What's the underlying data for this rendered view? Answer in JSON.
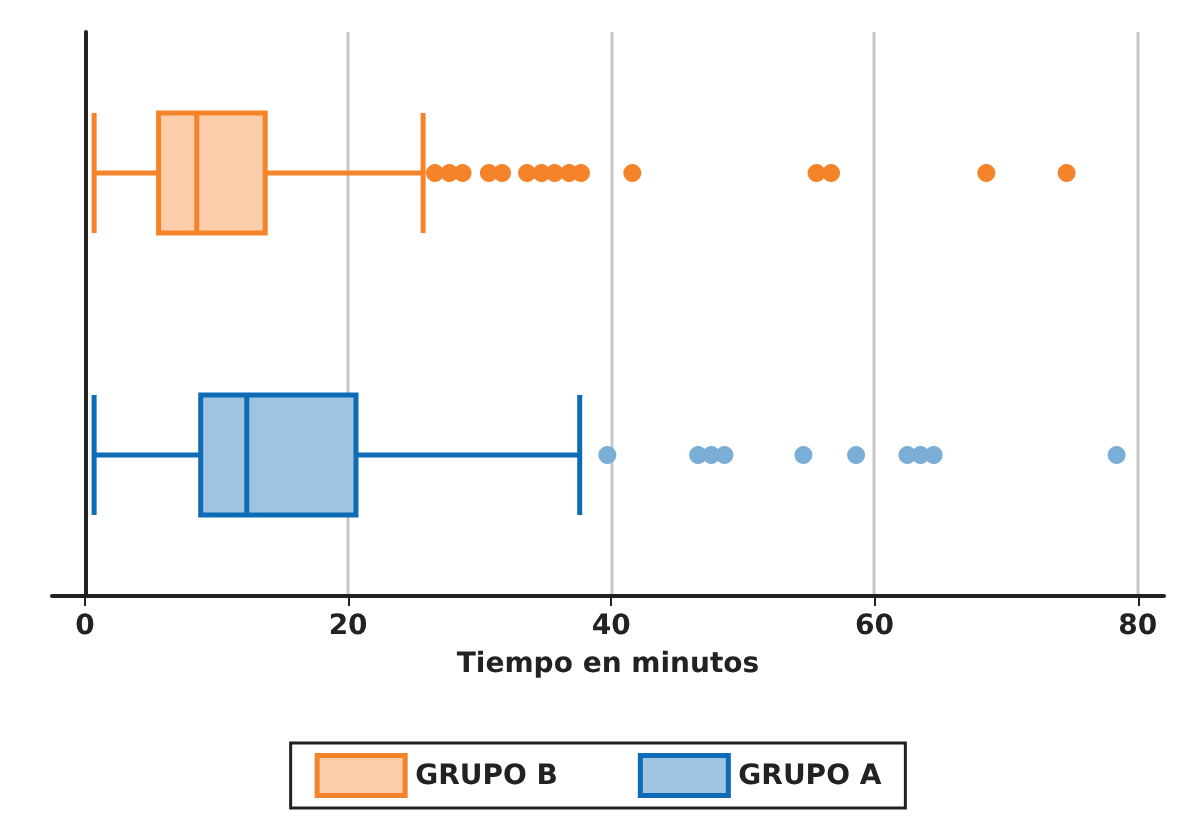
{
  "chart_data": {
    "type": "box",
    "orientation": "horizontal",
    "xlabel": "Tiempo en minutos",
    "categories": [
      null,
      null
    ],
    "xlim": [
      -2.5,
      82
    ],
    "xticks": [
      0,
      20,
      40,
      60,
      80
    ],
    "grid": "x",
    "legend": "bottom",
    "tick_labels": "x",
    "series": [
      {
        "name": "GRUPO B",
        "color": "#f5832a",
        "boxes": [
          {
            "low": 0.7,
            "q1": 5.6,
            "median": 8.5,
            "q3": 13.7,
            "high": 25.7,
            "outliers": [
              26.6,
              27.7,
              28.7,
              30.7,
              31.7,
              33.6,
              34.7,
              35.7,
              36.8,
              37.7,
              41.6,
              55.6,
              56.7,
              68.5,
              74.6
            ]
          },
          null
        ]
      },
      {
        "name": "GRUPO A",
        "color": "#0e6bb5",
        "boxes": [
          null,
          {
            "low": 0.7,
            "q1": 8.8,
            "median": 12.3,
            "q3": 20.6,
            "high": 37.6,
            "outliers": [
              39.7,
              46.6,
              47.6,
              48.6,
              54.6,
              58.6,
              62.5,
              63.5,
              64.5,
              78.4
            ]
          }
        ]
      }
    ]
  }
}
